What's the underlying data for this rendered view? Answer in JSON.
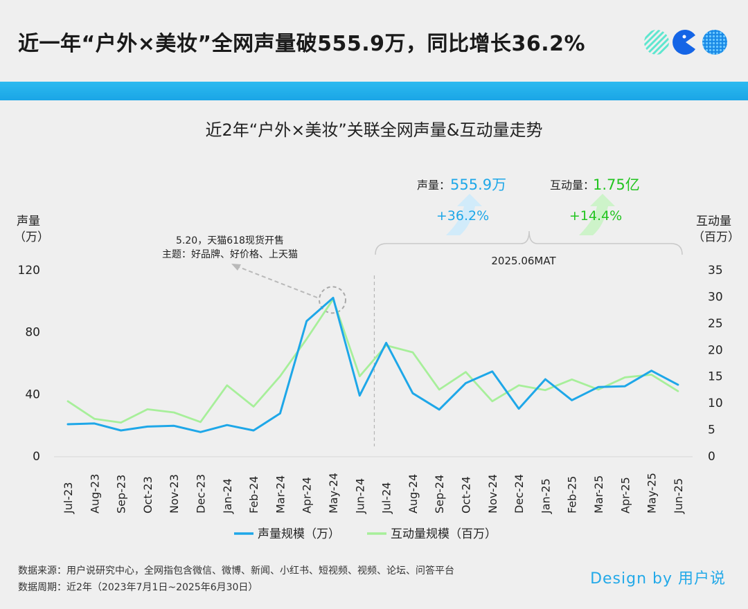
{
  "header": {
    "title": "近一年“户外×美妆”全网声量破555.9万，同比增长36.2%"
  },
  "chart_data": {
    "type": "line",
    "title": "近2年“户外×美妆”关联全网声量&互动量走势",
    "categories": [
      "Jul-23",
      "Aug-23",
      "Sep-23",
      "Oct-23",
      "Nov-23",
      "Dec-23",
      "Jan-24",
      "Feb-24",
      "Mar-24",
      "Apr-24",
      "May-24",
      "Jun-24",
      "Jul-24",
      "Aug-24",
      "Sep-24",
      "Oct-24",
      "Nov-24",
      "Dec-24",
      "Jan-25",
      "Feb-25",
      "Mar-25",
      "Apr-25",
      "May-25",
      "Jun-25"
    ],
    "left_axis": {
      "label_line1": "声量",
      "label_line2": "（万）",
      "ticks": [
        "0",
        "40",
        "80",
        "120"
      ],
      "ylim": [
        0,
        120
      ]
    },
    "right_axis": {
      "label_line1": "互动量",
      "label_line2": "（百万）",
      "ticks": [
        "0",
        "5",
        "10",
        "15",
        "20",
        "25",
        "30",
        "35"
      ],
      "ylim": [
        0,
        35
      ]
    },
    "series": [
      {
        "name": "声量规模（万）",
        "axis": "left",
        "color": "#1ea7e8",
        "values": [
          20.5,
          21,
          16.5,
          19,
          19.5,
          15.5,
          20,
          16.5,
          27.5,
          87,
          102,
          39,
          73,
          40.5,
          30,
          47,
          54.5,
          30.5,
          49.5,
          36,
          44.5,
          45,
          55,
          46
        ]
      },
      {
        "name": "互动量规模（百万）",
        "axis": "right",
        "color": "#a7ef9a",
        "values": [
          10.3,
          7,
          6.3,
          8.8,
          8.2,
          6.4,
          13.3,
          9.3,
          15,
          22,
          29.5,
          15,
          20.8,
          19.5,
          12.5,
          15.8,
          10.3,
          13.3,
          12.4,
          14.4,
          12.5,
          14.8,
          15.3,
          12.2
        ]
      }
    ],
    "annotation": {
      "line1": "5.20，天猫618现货开售",
      "line2": "主题：好品牌、好价格、上天猫"
    },
    "bracket_label": "2025.06MAT",
    "kpis": [
      {
        "label": "声量：",
        "value": "555.9万",
        "growth": "+36.2%",
        "color": "#1ea7e8"
      },
      {
        "label": "互动量：",
        "value": "1.75亿",
        "growth": "+14.4%",
        "color": "#22c41f"
      }
    ],
    "legend_position": "bottom",
    "grid": false
  },
  "footer": {
    "source": "数据来源：用户说研究中心，全网指包含微信、微博、新闻、小红书、短视频、视频、论坛、问答平台",
    "period": "数据周期：近2年（2023年7月1日~2025年6月30日）",
    "brand": "Design by 用户说"
  }
}
